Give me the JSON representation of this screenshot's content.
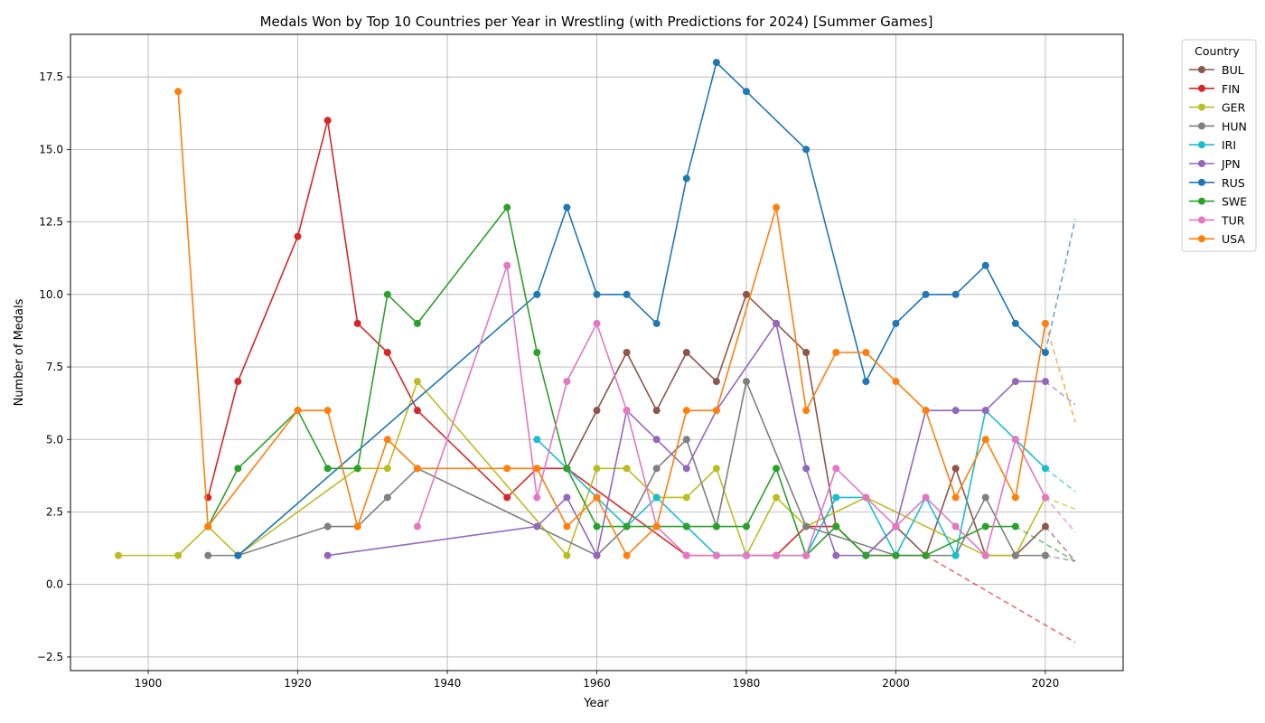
{
  "chart_data": {
    "type": "line",
    "title": "Medals Won by Top 10 Countries per Year in Wrestling (with Predictions for 2024) [Summer Games]",
    "xlabel": "Year",
    "ylabel": "Number of Medals",
    "xlim": [
      1889.6,
      2030.4
    ],
    "ylim": [
      -2.97,
      18.97
    ],
    "xticks": [
      1900,
      1920,
      1940,
      1960,
      1980,
      2000,
      2020
    ],
    "yticks": [
      -2.5,
      0.0,
      2.5,
      5.0,
      7.5,
      10.0,
      12.5,
      15.0,
      17.5
    ],
    "ytick_labels": [
      "−2.5",
      "0.0",
      "2.5",
      "5.0",
      "7.5",
      "10.0",
      "12.5",
      "15.0",
      "17.5"
    ],
    "grid": true,
    "legend": {
      "title": "Country",
      "placement": "outside-top-right"
    },
    "prediction_year": 2024,
    "series": [
      {
        "name": "BUL",
        "color": "#8c564b",
        "points": [
          [
            1956,
            4
          ],
          [
            1960,
            6
          ],
          [
            1964,
            8
          ],
          [
            1968,
            6
          ],
          [
            1972,
            8
          ],
          [
            1976,
            7
          ],
          [
            1980,
            10
          ],
          [
            1984,
            9
          ],
          [
            1988,
            8
          ],
          [
            1992,
            2
          ],
          [
            1996,
            1
          ],
          [
            2000,
            2
          ],
          [
            2004,
            1
          ],
          [
            2008,
            4
          ],
          [
            2012,
            1
          ],
          [
            2016,
            1
          ],
          [
            2020,
            2
          ]
        ],
        "prediction": 0.8
      },
      {
        "name": "FIN",
        "color": "#d62728",
        "points": [
          [
            1908,
            3
          ],
          [
            1912,
            7
          ],
          [
            1920,
            12
          ],
          [
            1924,
            16
          ],
          [
            1928,
            9
          ],
          [
            1932,
            8
          ],
          [
            1936,
            6
          ],
          [
            1948,
            3
          ],
          [
            1952,
            4
          ],
          [
            1956,
            4
          ],
          [
            1972,
            1
          ],
          [
            1976,
            1
          ],
          [
            1980,
            1
          ],
          [
            1984,
            1
          ],
          [
            1988,
            2
          ],
          [
            1992,
            2
          ],
          [
            1996,
            1
          ],
          [
            2000,
            1
          ],
          [
            2004,
            1
          ]
        ],
        "prediction": -2.0
      },
      {
        "name": "GER",
        "color": "#bcbd22",
        "points": [
          [
            1896,
            1
          ],
          [
            1904,
            1
          ],
          [
            1908,
            2
          ],
          [
            1912,
            1
          ],
          [
            1928,
            4
          ],
          [
            1932,
            4
          ],
          [
            1936,
            7
          ],
          [
            1956,
            1
          ],
          [
            1960,
            4
          ],
          [
            1964,
            4
          ],
          [
            1968,
            3
          ],
          [
            1972,
            3
          ],
          [
            1976,
            4
          ],
          [
            1980,
            1
          ],
          [
            1984,
            3
          ],
          [
            1988,
            2
          ],
          [
            1996,
            3
          ],
          [
            2012,
            1
          ],
          [
            2016,
            1
          ],
          [
            2020,
            3
          ]
        ],
        "prediction": 2.6
      },
      {
        "name": "HUN",
        "color": "#7f7f7f",
        "points": [
          [
            1908,
            1
          ],
          [
            1912,
            1
          ],
          [
            1924,
            2
          ],
          [
            1928,
            2
          ],
          [
            1932,
            3
          ],
          [
            1936,
            4
          ],
          [
            1960,
            1
          ],
          [
            1964,
            2
          ],
          [
            1968,
            4
          ],
          [
            1972,
            5
          ],
          [
            1976,
            2
          ],
          [
            1980,
            7
          ],
          [
            1988,
            2
          ],
          [
            2000,
            1
          ],
          [
            2004,
            1
          ],
          [
            2008,
            1
          ],
          [
            2012,
            3
          ],
          [
            2016,
            1
          ],
          [
            2020,
            1
          ]
        ],
        "prediction": 0.8
      },
      {
        "name": "IRI",
        "color": "#17becf",
        "points": [
          [
            1952,
            5
          ],
          [
            1956,
            4
          ],
          [
            1960,
            3
          ],
          [
            1964,
            2
          ],
          [
            1968,
            3
          ],
          [
            1972,
            2
          ],
          [
            1976,
            1
          ],
          [
            1980,
            1
          ],
          [
            1984,
            1
          ],
          [
            1988,
            1
          ],
          [
            1992,
            3
          ],
          [
            1996,
            3
          ],
          [
            2000,
            1
          ],
          [
            2004,
            3
          ],
          [
            2008,
            1
          ],
          [
            2012,
            6
          ],
          [
            2016,
            5
          ],
          [
            2020,
            4
          ]
        ],
        "prediction": 3.2
      },
      {
        "name": "JPN",
        "color": "#9467bd",
        "points": [
          [
            1924,
            1
          ],
          [
            1952,
            2
          ],
          [
            1956,
            3
          ],
          [
            1960,
            1
          ],
          [
            1964,
            6
          ],
          [
            1968,
            5
          ],
          [
            1972,
            4
          ],
          [
            1976,
            6
          ],
          [
            1984,
            9
          ],
          [
            1988,
            4
          ],
          [
            1992,
            1
          ],
          [
            1996,
            1
          ],
          [
            2000,
            2
          ],
          [
            2004,
            6
          ],
          [
            2008,
            6
          ],
          [
            2012,
            6
          ],
          [
            2016,
            7
          ],
          [
            2020,
            7
          ]
        ],
        "prediction": 6.2
      },
      {
        "name": "RUS",
        "color": "#1f77b4",
        "points": [
          [
            1912,
            1
          ],
          [
            1952,
            10
          ],
          [
            1956,
            13
          ],
          [
            1960,
            10
          ],
          [
            1964,
            10
          ],
          [
            1968,
            9
          ],
          [
            1972,
            14
          ],
          [
            1976,
            18
          ],
          [
            1980,
            17
          ],
          [
            1988,
            15
          ],
          [
            1996,
            7
          ],
          [
            2000,
            9
          ],
          [
            2004,
            10
          ],
          [
            2008,
            10
          ],
          [
            2012,
            11
          ],
          [
            2016,
            9
          ],
          [
            2020,
            8
          ]
        ],
        "prediction": 12.6
      },
      {
        "name": "SWE",
        "color": "#2ca02c",
        "points": [
          [
            1908,
            2
          ],
          [
            1912,
            4
          ],
          [
            1920,
            6
          ],
          [
            1924,
            4
          ],
          [
            1928,
            4
          ],
          [
            1932,
            10
          ],
          [
            1936,
            9
          ],
          [
            1948,
            13
          ],
          [
            1952,
            8
          ],
          [
            1956,
            4
          ],
          [
            1960,
            2
          ],
          [
            1964,
            2
          ],
          [
            1968,
            2
          ],
          [
            1972,
            2
          ],
          [
            1976,
            2
          ],
          [
            1980,
            2
          ],
          [
            1984,
            4
          ],
          [
            1988,
            1
          ],
          [
            1992,
            2
          ],
          [
            1996,
            1
          ],
          [
            2000,
            1
          ],
          [
            2004,
            1
          ],
          [
            2012,
            2
          ],
          [
            2016,
            2
          ]
        ],
        "prediction": 0.8
      },
      {
        "name": "TUR",
        "color": "#e377c2",
        "points": [
          [
            1936,
            2
          ],
          [
            1948,
            11
          ],
          [
            1952,
            3
          ],
          [
            1956,
            7
          ],
          [
            1960,
            9
          ],
          [
            1964,
            6
          ],
          [
            1968,
            2
          ],
          [
            1972,
            1
          ],
          [
            1976,
            1
          ],
          [
            1980,
            1
          ],
          [
            1984,
            1
          ],
          [
            1988,
            1
          ],
          [
            1992,
            4
          ],
          [
            1996,
            3
          ],
          [
            2000,
            2
          ],
          [
            2004,
            3
          ],
          [
            2008,
            2
          ],
          [
            2012,
            1
          ],
          [
            2016,
            5
          ],
          [
            2020,
            3
          ]
        ],
        "prediction": 1.8
      },
      {
        "name": "USA",
        "color": "#ff7f0e",
        "points": [
          [
            1904,
            17
          ],
          [
            1908,
            2
          ],
          [
            1920,
            6
          ],
          [
            1924,
            6
          ],
          [
            1928,
            2
          ],
          [
            1932,
            5
          ],
          [
            1936,
            4
          ],
          [
            1948,
            4
          ],
          [
            1952,
            4
          ],
          [
            1956,
            2
          ],
          [
            1960,
            3
          ],
          [
            1964,
            1
          ],
          [
            1968,
            2
          ],
          [
            1972,
            6
          ],
          [
            1976,
            6
          ],
          [
            1984,
            13
          ],
          [
            1988,
            6
          ],
          [
            1992,
            8
          ],
          [
            1996,
            8
          ],
          [
            2000,
            7
          ],
          [
            2004,
            6
          ],
          [
            2008,
            3
          ],
          [
            2012,
            5
          ],
          [
            2016,
            3
          ],
          [
            2020,
            9
          ]
        ],
        "prediction": 5.6
      }
    ]
  }
}
